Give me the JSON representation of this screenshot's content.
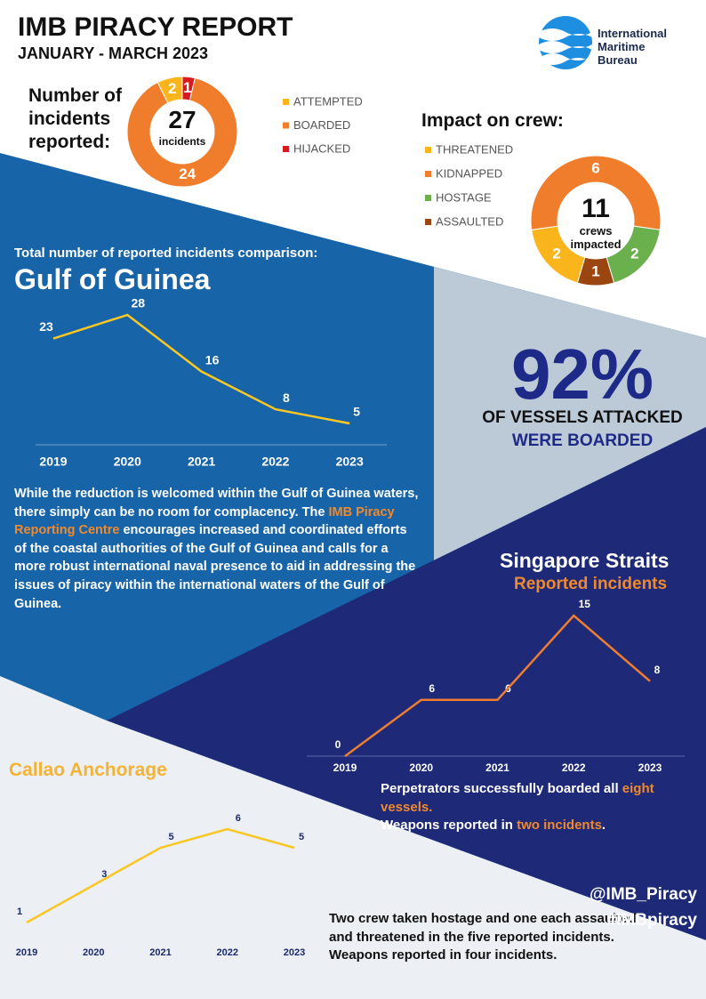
{
  "header": {
    "title": "IMB PIRACY REPORT",
    "subtitle": "JANUARY - MARCH 2023"
  },
  "logo": {
    "lines": [
      "International",
      "Maritime",
      "Bureau"
    ]
  },
  "chart_data": [
    {
      "type": "donut",
      "title": "Number of incidents reported:",
      "categories": [
        "ATTEMPTED",
        "BOARDED",
        "HIJACKED"
      ],
      "values": [
        2,
        24,
        1
      ],
      "colors": [
        "#f9b51b",
        "#ef7d2c",
        "#d71920"
      ],
      "total": 27,
      "total_label": "incidents"
    },
    {
      "type": "donut",
      "title": "Impact on crew:",
      "categories": [
        "THREATENED",
        "KIDNAPPED",
        "HOSTAGE",
        "ASSAULTED"
      ],
      "values": [
        2,
        6,
        2,
        1
      ],
      "colors": [
        "#f9b51b",
        "#ef7d2c",
        "#6ab04c",
        "#9b4510"
      ],
      "total": 11,
      "total_label": "crews impacted"
    },
    {
      "type": "line",
      "subtitle": "Total number of reported incidents comparison:",
      "title": "Gulf of Guinea",
      "categories": [
        "2019",
        "2020",
        "2021",
        "2022",
        "2023"
      ],
      "values": [
        23,
        28,
        16,
        8,
        5
      ],
      "color": "#f9c623"
    },
    {
      "type": "line",
      "title": "Singapore Straits",
      "subtitle": "Reported incidents",
      "categories": [
        "2019",
        "2020",
        "2021",
        "2022",
        "2023"
      ],
      "values": [
        0,
        6,
        6,
        15,
        8
      ],
      "color": "#ee7d31"
    },
    {
      "type": "line",
      "title": "Callao Anchorage",
      "categories": [
        "2019",
        "2020",
        "2021",
        "2022",
        "2023"
      ],
      "values": [
        1,
        3,
        5,
        6,
        5
      ],
      "color": "#f9c623"
    }
  ],
  "stat": {
    "figure": "92%",
    "line1": "OF VESSELS ATTACKED",
    "line2": "WERE BOARDED"
  },
  "gulf_note": {
    "parts": [
      "While the reduction is welcomed within the Gulf of Guinea waters, there simply can be no room for complacency. The ",
      "IMB Piracy Reporting Centre",
      " encourages increased and coordinated efforts of the coastal authorities of the Gulf of Guinea and calls for a more robust international naval presence to aid in addressing the issues of piracy within the international waters of the Gulf of Guinea."
    ]
  },
  "singapore_note": {
    "parts": [
      "Perpetrators successfully boarded all ",
      "eight vessels.",
      "Weapons reported in ",
      "two incidents",
      "."
    ]
  },
  "callao_note": {
    "text": "Two crew taken hostage and one each assaulted and threatened in the five reported incidents. Weapons reported in four incidents."
  },
  "social": [
    "@IMB_Piracy",
    "#IMBpiracy"
  ]
}
